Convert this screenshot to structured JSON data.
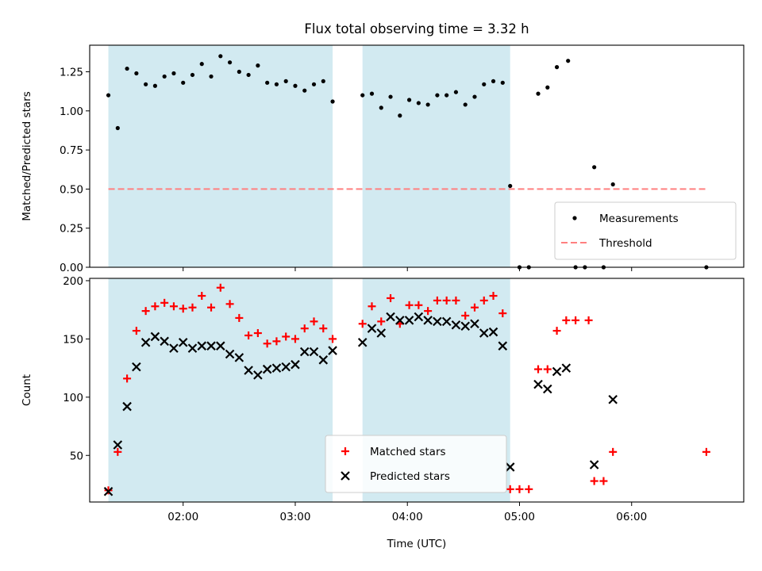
{
  "chart_data": {
    "title": "Flux total observing time = 3.32 h",
    "xlabel": "Time (UTC)",
    "xlim": [
      "01:10",
      "07:00"
    ],
    "xticks": [
      "02:00",
      "03:00",
      "04:00",
      "05:00",
      "06:00"
    ],
    "shaded_intervals": [
      [
        "01:20",
        "03:20"
      ],
      [
        "03:36",
        "04:55"
      ]
    ],
    "shade_color": "#add8e6",
    "panels": [
      {
        "type": "scatter",
        "ylabel": "Matched/Predicted stars",
        "ylim": [
          0,
          1.42
        ],
        "yticks": [
          "0.00",
          "0.25",
          "0.50",
          "0.75",
          "1.00",
          "1.25"
        ],
        "legend_position": "lower-right",
        "series": [
          {
            "name": "Measurements",
            "marker": "dot",
            "color": "#000000",
            "points": [
              [
                "01:20",
                1.1
              ],
              [
                "01:25",
                0.89
              ],
              [
                "01:30",
                1.27
              ],
              [
                "01:35",
                1.24
              ],
              [
                "01:40",
                1.17
              ],
              [
                "01:45",
                1.16
              ],
              [
                "01:50",
                1.22
              ],
              [
                "01:55",
                1.24
              ],
              [
                "02:00",
                1.18
              ],
              [
                "02:05",
                1.23
              ],
              [
                "02:10",
                1.3
              ],
              [
                "02:15",
                1.22
              ],
              [
                "02:20",
                1.35
              ],
              [
                "02:25",
                1.31
              ],
              [
                "02:30",
                1.25
              ],
              [
                "02:35",
                1.23
              ],
              [
                "02:40",
                1.29
              ],
              [
                "02:45",
                1.18
              ],
              [
                "02:50",
                1.17
              ],
              [
                "02:55",
                1.19
              ],
              [
                "03:00",
                1.16
              ],
              [
                "03:05",
                1.13
              ],
              [
                "03:10",
                1.17
              ],
              [
                "03:15",
                1.19
              ],
              [
                "03:20",
                1.06
              ],
              [
                "03:36",
                1.1
              ],
              [
                "03:41",
                1.11
              ],
              [
                "03:46",
                1.02
              ],
              [
                "03:51",
                1.09
              ],
              [
                "03:56",
                0.97
              ],
              [
                "04:01",
                1.07
              ],
              [
                "04:06",
                1.05
              ],
              [
                "04:11",
                1.04
              ],
              [
                "04:16",
                1.1
              ],
              [
                "04:21",
                1.1
              ],
              [
                "04:26",
                1.12
              ],
              [
                "04:31",
                1.04
              ],
              [
                "04:36",
                1.09
              ],
              [
                "04:41",
                1.17
              ],
              [
                "04:46",
                1.19
              ],
              [
                "04:51",
                1.18
              ],
              [
                "04:55",
                0.52
              ],
              [
                "05:00",
                0.0
              ],
              [
                "05:05",
                0.0
              ],
              [
                "05:10",
                1.11
              ],
              [
                "05:15",
                1.15
              ],
              [
                "05:20",
                1.28
              ],
              [
                "05:26",
                1.32
              ],
              [
                "05:30",
                0.0
              ],
              [
                "05:35",
                0.0
              ],
              [
                "05:40",
                0.64
              ],
              [
                "05:45",
                0.0
              ],
              [
                "05:50",
                0.53
              ],
              [
                "06:40",
                0.0
              ]
            ]
          },
          {
            "name": "Threshold",
            "type": "line",
            "style": "dashed",
            "color": "#ff8080",
            "y": 0.5,
            "x_range": [
              "01:20",
              "06:40"
            ]
          }
        ]
      },
      {
        "type": "scatter",
        "ylabel": "Count",
        "ylim": [
          10,
          202
        ],
        "yticks": [
          "50",
          "100",
          "150",
          "200"
        ],
        "legend_position": "lower-center",
        "series": [
          {
            "name": "Matched stars",
            "marker": "plus",
            "color": "#ff0000",
            "points": [
              [
                "01:20",
                20
              ],
              [
                "01:25",
                53
              ],
              [
                "01:30",
                116
              ],
              [
                "01:35",
                157
              ],
              [
                "01:40",
                174
              ],
              [
                "01:45",
                178
              ],
              [
                "01:50",
                181
              ],
              [
                "01:55",
                178
              ],
              [
                "02:00",
                176
              ],
              [
                "02:05",
                177
              ],
              [
                "02:10",
                187
              ],
              [
                "02:15",
                177
              ],
              [
                "02:20",
                194
              ],
              [
                "02:25",
                180
              ],
              [
                "02:30",
                168
              ],
              [
                "02:35",
                153
              ],
              [
                "02:40",
                155
              ],
              [
                "02:45",
                146
              ],
              [
                "02:50",
                148
              ],
              [
                "02:55",
                152
              ],
              [
                "03:00",
                150
              ],
              [
                "03:05",
                159
              ],
              [
                "03:10",
                165
              ],
              [
                "03:15",
                159
              ],
              [
                "03:20",
                150
              ],
              [
                "03:36",
                163
              ],
              [
                "03:41",
                178
              ],
              [
                "03:46",
                165
              ],
              [
                "03:51",
                185
              ],
              [
                "03:56",
                163
              ],
              [
                "04:01",
                179
              ],
              [
                "04:06",
                179
              ],
              [
                "04:11",
                174
              ],
              [
                "04:16",
                183
              ],
              [
                "04:21",
                183
              ],
              [
                "04:26",
                183
              ],
              [
                "04:31",
                170
              ],
              [
                "04:36",
                177
              ],
              [
                "04:41",
                183
              ],
              [
                "04:46",
                187
              ],
              [
                "04:51",
                172
              ],
              [
                "04:55",
                21
              ],
              [
                "05:00",
                21
              ],
              [
                "05:05",
                21
              ],
              [
                "05:10",
                124
              ],
              [
                "05:15",
                124
              ],
              [
                "05:20",
                157
              ],
              [
                "05:25",
                166
              ],
              [
                "05:30",
                166
              ],
              [
                "05:37",
                166
              ],
              [
                "05:40",
                28
              ],
              [
                "05:45",
                28
              ],
              [
                "05:50",
                53
              ],
              [
                "06:40",
                53
              ]
            ]
          },
          {
            "name": "Predicted stars",
            "marker": "x",
            "color": "#000000",
            "points": [
              [
                "01:20",
                19
              ],
              [
                "01:25",
                59
              ],
              [
                "01:30",
                92
              ],
              [
                "01:35",
                126
              ],
              [
                "01:40",
                147
              ],
              [
                "01:45",
                152
              ],
              [
                "01:50",
                148
              ],
              [
                "01:55",
                142
              ],
              [
                "02:00",
                147
              ],
              [
                "02:05",
                142
              ],
              [
                "02:10",
                144
              ],
              [
                "02:15",
                144
              ],
              [
                "02:20",
                144
              ],
              [
                "02:25",
                137
              ],
              [
                "02:30",
                134
              ],
              [
                "02:35",
                123
              ],
              [
                "02:40",
                119
              ],
              [
                "02:45",
                124
              ],
              [
                "02:50",
                125
              ],
              [
                "02:55",
                126
              ],
              [
                "03:00",
                128
              ],
              [
                "03:05",
                139
              ],
              [
                "03:10",
                139
              ],
              [
                "03:15",
                132
              ],
              [
                "03:20",
                140
              ],
              [
                "03:36",
                147
              ],
              [
                "03:41",
                159
              ],
              [
                "03:46",
                155
              ],
              [
                "03:51",
                169
              ],
              [
                "03:56",
                166
              ],
              [
                "04:01",
                166
              ],
              [
                "04:06",
                169
              ],
              [
                "04:11",
                166
              ],
              [
                "04:16",
                165
              ],
              [
                "04:21",
                165
              ],
              [
                "04:26",
                162
              ],
              [
                "04:31",
                161
              ],
              [
                "04:36",
                163
              ],
              [
                "04:41",
                155
              ],
              [
                "04:46",
                156
              ],
              [
                "04:51",
                144
              ],
              [
                "04:55",
                40
              ],
              [
                "05:10",
                111
              ],
              [
                "05:15",
                107
              ],
              [
                "05:20",
                122
              ],
              [
                "05:25",
                125
              ],
              [
                "05:40",
                42
              ],
              [
                "05:50",
                98
              ]
            ]
          }
        ]
      }
    ]
  }
}
